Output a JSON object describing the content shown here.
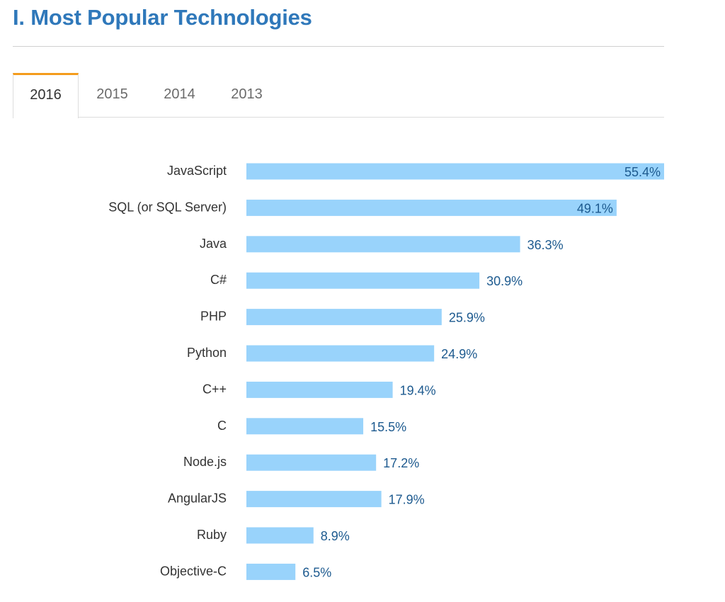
{
  "page": {
    "title": "I. Most Popular Technologies"
  },
  "tabs": [
    {
      "label": "2016",
      "active": true
    },
    {
      "label": "2015",
      "active": false
    },
    {
      "label": "2014",
      "active": false
    },
    {
      "label": "2013",
      "active": false
    }
  ],
  "colors": {
    "title": "#2f78ba",
    "bar": "#99d3fb",
    "value_text": "#1d5a8f",
    "active_tab_accent": "#f49c1c"
  },
  "chart_data": {
    "type": "bar",
    "orientation": "horizontal",
    "categories": [
      "JavaScript",
      "SQL (or SQL Server)",
      "Java",
      "C#",
      "PHP",
      "Python",
      "C++",
      "C",
      "Node.js",
      "AngularJS",
      "Ruby",
      "Objective-C"
    ],
    "values": [
      55.4,
      49.1,
      36.3,
      30.9,
      25.9,
      24.9,
      19.4,
      15.5,
      17.2,
      17.9,
      8.9,
      6.5
    ],
    "value_labels": [
      "55.4%",
      "49.1%",
      "36.3%",
      "30.9%",
      "25.9%",
      "24.9%",
      "19.4%",
      "15.5%",
      "17.2%",
      "17.9%",
      "8.9%",
      "6.5%"
    ],
    "value_unit": "%",
    "xlim": [
      0,
      55.4
    ],
    "grid": false,
    "legend": "none"
  }
}
